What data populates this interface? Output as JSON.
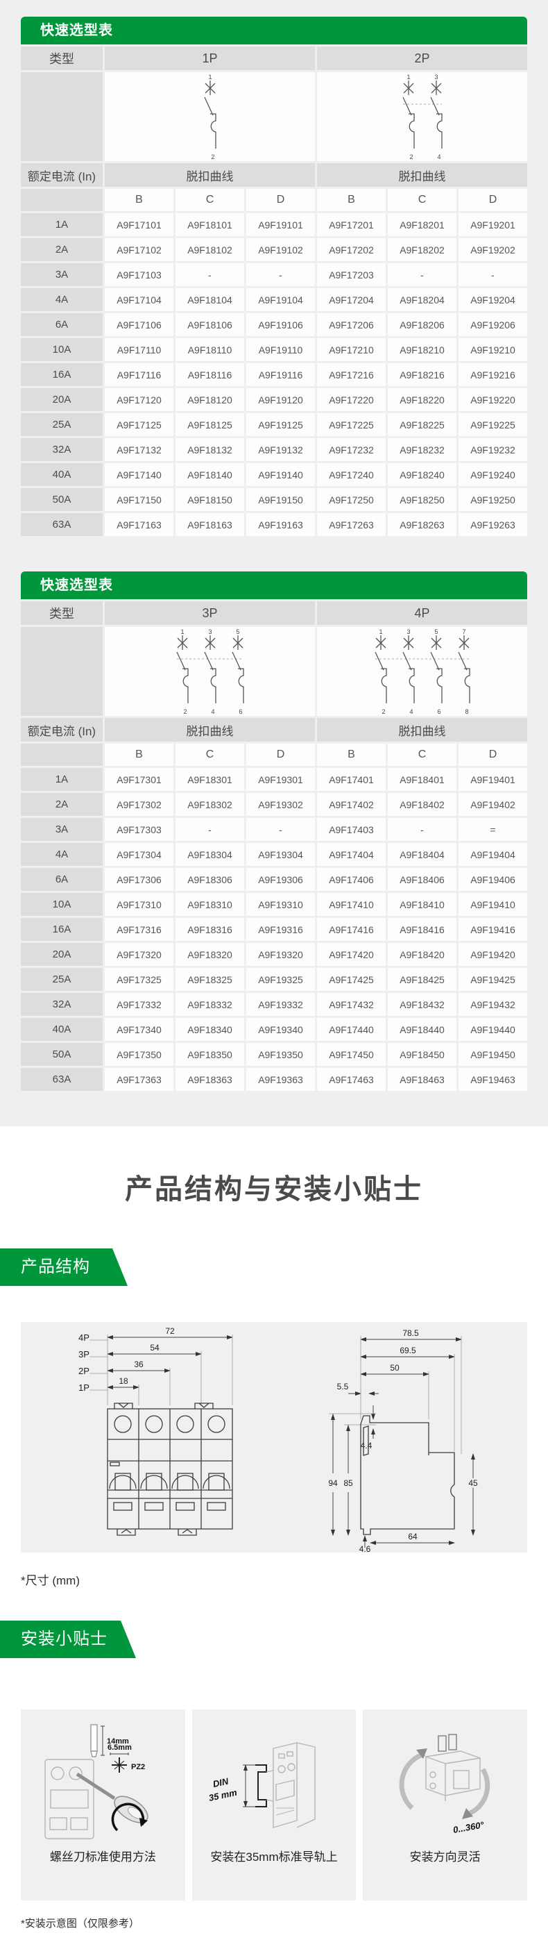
{
  "colors": {
    "accent_green": "#00963B",
    "page_bg": "#efeff0",
    "cell_gray": "#dcddde",
    "cell_white": "#fdfdfe"
  },
  "table1": {
    "title": "快速选型表",
    "type_label": "类型",
    "col_groups": [
      "1P",
      "2P"
    ],
    "current_label": "额定电流 (In)",
    "curve_label": "脱扣曲线",
    "curve_cols": [
      "B",
      "C",
      "D"
    ],
    "rows": [
      {
        "current": "1A",
        "cells": [
          "A9F17101",
          "A9F18101",
          "A9F19101",
          "A9F17201",
          "A9F18201",
          "A9F19201"
        ]
      },
      {
        "current": "2A",
        "cells": [
          "A9F17102",
          "A9F18102",
          "A9F19102",
          "A9F17202",
          "A9F18202",
          "A9F19202"
        ]
      },
      {
        "current": "3A",
        "cells": [
          "A9F17103",
          "-",
          "-",
          "A9F17203",
          "-",
          "-"
        ]
      },
      {
        "current": "4A",
        "cells": [
          "A9F17104",
          "A9F18104",
          "A9F19104",
          "A9F17204",
          "A9F18204",
          "A9F19204"
        ]
      },
      {
        "current": "6A",
        "cells": [
          "A9F17106",
          "A9F18106",
          "A9F19106",
          "A9F17206",
          "A9F18206",
          "A9F19206"
        ]
      },
      {
        "current": "10A",
        "cells": [
          "A9F17110",
          "A9F18110",
          "A9F19110",
          "A9F17210",
          "A9F18210",
          "A9F19210"
        ]
      },
      {
        "current": "16A",
        "cells": [
          "A9F17116",
          "A9F18116",
          "A9F19116",
          "A9F17216",
          "A9F18216",
          "A9F19216"
        ]
      },
      {
        "current": "20A",
        "cells": [
          "A9F17120",
          "A9F18120",
          "A9F19120",
          "A9F17220",
          "A9F18220",
          "A9F19220"
        ]
      },
      {
        "current": "25A",
        "cells": [
          "A9F17125",
          "A9F18125",
          "A9F19125",
          "A9F17225",
          "A9F18225",
          "A9F19225"
        ]
      },
      {
        "current": "32A",
        "cells": [
          "A9F17132",
          "A9F18132",
          "A9F19132",
          "A9F17232",
          "A9F18232",
          "A9F19232"
        ]
      },
      {
        "current": "40A",
        "cells": [
          "A9F17140",
          "A9F18140",
          "A9F19140",
          "A9F17240",
          "A9F18240",
          "A9F19240"
        ]
      },
      {
        "current": "50A",
        "cells": [
          "A9F17150",
          "A9F18150",
          "A9F19150",
          "A9F17250",
          "A9F18250",
          "A9F19250"
        ]
      },
      {
        "current": "63A",
        "cells": [
          "A9F17163",
          "A9F18163",
          "A9F19163",
          "A9F17263",
          "A9F18263",
          "A9F19263"
        ]
      }
    ]
  },
  "table2": {
    "title": "快速选型表",
    "type_label": "类型",
    "col_groups": [
      "3P",
      "4P"
    ],
    "current_label": "额定电流 (In)",
    "curve_label": "脱扣曲线",
    "curve_cols": [
      "B",
      "C",
      "D"
    ],
    "rows": [
      {
        "current": "1A",
        "cells": [
          "A9F17301",
          "A9F18301",
          "A9F19301",
          "A9F17401",
          "A9F18401",
          "A9F19401"
        ]
      },
      {
        "current": "2A",
        "cells": [
          "A9F17302",
          "A9F18302",
          "A9F19302",
          "A9F17402",
          "A9F18402",
          "A9F19402"
        ]
      },
      {
        "current": "3A",
        "cells": [
          "A9F17303",
          "-",
          "-",
          "A9F17403",
          "-",
          "="
        ]
      },
      {
        "current": "4A",
        "cells": [
          "A9F17304",
          "A9F18304",
          "A9F19304",
          "A9F17404",
          "A9F18404",
          "A9F19404"
        ]
      },
      {
        "current": "6A",
        "cells": [
          "A9F17306",
          "A9F18306",
          "A9F19306",
          "A9F17406",
          "A9F18406",
          "A9F19406"
        ]
      },
      {
        "current": "10A",
        "cells": [
          "A9F17310",
          "A9F18310",
          "A9F19310",
          "A9F17410",
          "A9F18410",
          "A9F19410"
        ]
      },
      {
        "current": "16A",
        "cells": [
          "A9F17316",
          "A9F18316",
          "A9F19316",
          "A9F17416",
          "A9F18416",
          "A9F19416"
        ]
      },
      {
        "current": "20A",
        "cells": [
          "A9F17320",
          "A9F18320",
          "A9F19320",
          "A9F17420",
          "A9F18420",
          "A9F19420"
        ]
      },
      {
        "current": "25A",
        "cells": [
          "A9F17325",
          "A9F18325",
          "A9F19325",
          "A9F17425",
          "A9F18425",
          "A9F19425"
        ]
      },
      {
        "current": "32A",
        "cells": [
          "A9F17332",
          "A9F18332",
          "A9F19332",
          "A9F17432",
          "A9F18432",
          "A9F19432"
        ]
      },
      {
        "current": "40A",
        "cells": [
          "A9F17340",
          "A9F18340",
          "A9F19340",
          "A9F17440",
          "A9F18440",
          "A9F19440"
        ]
      },
      {
        "current": "50A",
        "cells": [
          "A9F17350",
          "A9F18350",
          "A9F19350",
          "A9F17450",
          "A9F18450",
          "A9F19450"
        ]
      },
      {
        "current": "63A",
        "cells": [
          "A9F17363",
          "A9F18363",
          "A9F19363",
          "A9F17463",
          "A9F18463",
          "A9F19463"
        ]
      }
    ]
  },
  "poles": {
    "1P": {
      "top": [
        "1"
      ],
      "bottom": [
        "2"
      ]
    },
    "2P": {
      "top": [
        "1",
        "3"
      ],
      "bottom": [
        "2",
        "4"
      ]
    },
    "3P": {
      "top": [
        "1",
        "3",
        "5"
      ],
      "bottom": [
        "2",
        "4",
        "6"
      ]
    },
    "4P": {
      "top": [
        "1",
        "3",
        "5",
        "7"
      ],
      "bottom": [
        "2",
        "4",
        "6",
        "8"
      ]
    }
  },
  "section_title": "产品结构与安装小贴士",
  "structure": {
    "banner": "产品结构",
    "front_dims": [
      {
        "label": "4P",
        "value": "72"
      },
      {
        "label": "3P",
        "value": "54"
      },
      {
        "label": "2P",
        "value": "36"
      },
      {
        "label": "1P",
        "value": "18"
      }
    ],
    "side_dims": {
      "d785": "78.5",
      "d695": "69.5",
      "d50": "50",
      "d55": "5.5",
      "d44": "4.4",
      "d94": "94",
      "d85": "85",
      "d45": "45",
      "d64": "64",
      "d46": "4.6"
    },
    "unit_note": "*尺寸 (mm)"
  },
  "tips": {
    "banner": "安装小贴士",
    "items": [
      {
        "caption": "螺丝刀标准使用方法",
        "labels": {
          "l14": "14mm",
          "l65": "6.5mm",
          "pz2": "PZ2"
        }
      },
      {
        "caption": "安装在35mm标准导轨上",
        "labels": {
          "din1": "DIN",
          "din2": "35 mm"
        }
      },
      {
        "caption": "安装方向灵活",
        "labels": {
          "rot": "0...360°"
        }
      }
    ],
    "footnote": "*安装示意图（仅限参考）"
  }
}
